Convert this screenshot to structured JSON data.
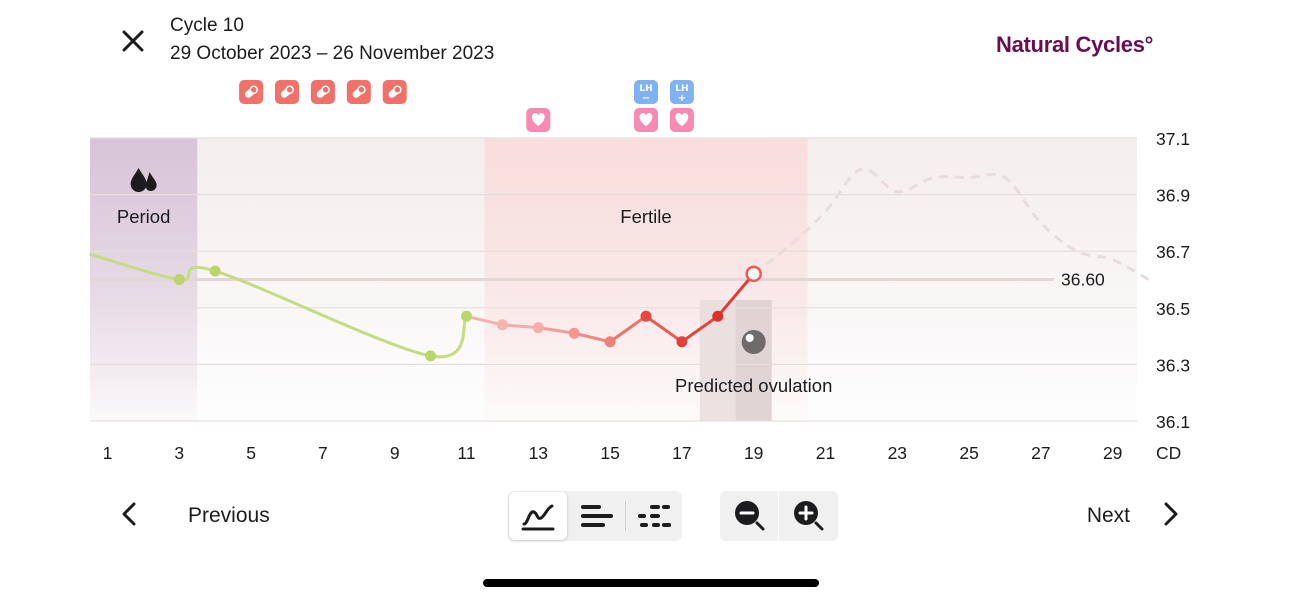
{
  "header": {
    "cycle_title": "Cycle 10",
    "cycle_dates": "29 October 2023 – 26 November 2023",
    "brand": "Natural Cycles°"
  },
  "colors": {
    "brand": "#6a0f4e",
    "period_band": "#d8c4d8",
    "fertile_band": "#f9dedd",
    "pill_badge": "#f0706a",
    "heart_badge": "#f78ab3",
    "lh_badge": "#7fb2ef",
    "nonfertile_line": "#c5dc83",
    "fertile_line": "#ee5a50",
    "prediction_line": "#e8dcdc"
  },
  "chart_data": {
    "type": "line",
    "x_unit_label": "CD",
    "x_ticks": [
      1,
      3,
      5,
      7,
      9,
      11,
      13,
      15,
      17,
      19,
      21,
      23,
      25,
      27,
      29
    ],
    "y_ticks": [
      "37.1",
      "36.9",
      "36.7",
      "36.5",
      "36.3",
      "36.1"
    ],
    "ylim": [
      36.1,
      37.1
    ],
    "xlim": [
      0.5,
      30
    ],
    "coverline": {
      "value": 36.6,
      "label": "36.60"
    },
    "regions": [
      {
        "name": "period",
        "label": "Period",
        "from": 0.5,
        "to": 3.5,
        "icon": "drops-icon"
      },
      {
        "name": "fertile",
        "label": "Fertile",
        "from": 11.5,
        "to": 20.5
      },
      {
        "name": "predicted-ovulation",
        "label": "Predicted ovulation",
        "from": 17.5,
        "to": 19.5,
        "day": 19,
        "icon": "ovulation-icon"
      }
    ],
    "series": [
      {
        "kind": "nonfertile",
        "points": [
          [
            0.5,
            36.69
          ],
          [
            3,
            36.6
          ],
          [
            4,
            36.63
          ],
          [
            10,
            36.33
          ],
          [
            11,
            36.47
          ]
        ],
        "marked_days": [
          3,
          4,
          10,
          11
        ]
      },
      {
        "kind": "fertile",
        "points": [
          [
            11,
            36.47
          ],
          [
            12,
            36.44
          ],
          [
            13,
            36.43
          ],
          [
            14,
            36.41
          ],
          [
            15,
            36.38
          ],
          [
            16,
            36.47
          ],
          [
            17,
            36.38
          ],
          [
            18,
            36.47
          ],
          [
            19,
            36.62
          ]
        ],
        "marked_days": [
          12,
          13,
          14,
          15,
          16,
          17,
          18,
          19
        ],
        "open_marker_day": 19
      },
      {
        "kind": "prediction",
        "points": [
          [
            19,
            36.62
          ],
          [
            20,
            36.72
          ],
          [
            21,
            36.84
          ],
          [
            22,
            36.99
          ],
          [
            23,
            36.91
          ],
          [
            24,
            36.96
          ],
          [
            25,
            36.96
          ],
          [
            26,
            36.96
          ],
          [
            27,
            36.8
          ],
          [
            28,
            36.7
          ],
          [
            29,
            36.67
          ],
          [
            30,
            36.6
          ]
        ]
      }
    ],
    "badges": [
      {
        "day": 5,
        "row": 0,
        "type": "pill",
        "icon": "pill-icon"
      },
      {
        "day": 6,
        "row": 0,
        "type": "pill",
        "icon": "pill-icon"
      },
      {
        "day": 7,
        "row": 0,
        "type": "pill",
        "icon": "pill-icon"
      },
      {
        "day": 8,
        "row": 0,
        "type": "pill",
        "icon": "pill-icon"
      },
      {
        "day": 9,
        "row": 0,
        "type": "pill",
        "icon": "pill-icon"
      },
      {
        "day": 13,
        "row": 1,
        "type": "heart",
        "icon": "heart-icon"
      },
      {
        "day": 16,
        "row": 0,
        "type": "lh",
        "icon": "lh-negative-icon",
        "text": "LH",
        "sign": "−"
      },
      {
        "day": 17,
        "row": 0,
        "type": "lh",
        "icon": "lh-positive-icon",
        "text": "LH",
        "sign": "+"
      },
      {
        "day": 16,
        "row": 1,
        "type": "heart",
        "icon": "heart-icon"
      },
      {
        "day": 17,
        "row": 1,
        "type": "heart",
        "icon": "heart-icon"
      }
    ]
  },
  "nav": {
    "previous_label": "Previous",
    "next_label": "Next"
  },
  "view_modes": [
    {
      "name": "graph-view-button",
      "icon": "graph-icon",
      "active": true
    },
    {
      "name": "bars-view-button",
      "icon": "bars-icon",
      "active": false
    },
    {
      "name": "dots-view-button",
      "icon": "dots-icon",
      "active": false
    }
  ],
  "zoom": {
    "zoom_out_icon": "zoom-out-icon",
    "zoom_in_icon": "zoom-in-icon"
  }
}
